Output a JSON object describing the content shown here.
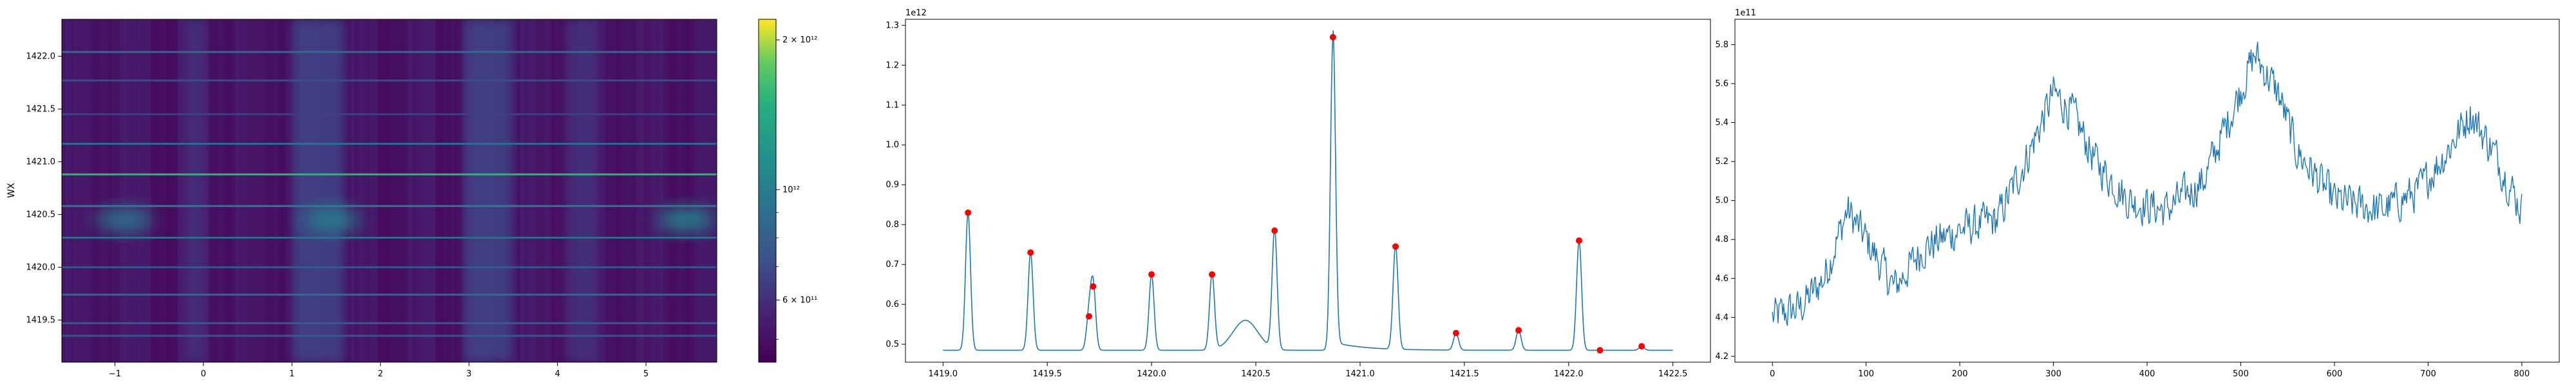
{
  "chart_data": [
    {
      "type": "heatmap",
      "xlabel": "",
      "ylabel": "WX",
      "xlim": [
        -1.6,
        5.8
      ],
      "ylim": [
        1419.1,
        1422.35
      ],
      "xticks": [
        -1,
        0,
        1,
        2,
        3,
        4,
        5
      ],
      "yticks": [
        1419.5,
        1420.0,
        1420.5,
        1421.0,
        1421.5,
        1422.0
      ],
      "ytick_labels": [
        "1419.5",
        "1420.0",
        "1420.5",
        "1421.0",
        "1421.5",
        "1422.0"
      ],
      "colormap": "viridis",
      "color_scale": "log",
      "colorbar": {
        "range": [
          450000000000,
          2200000000000
        ],
        "ticks": [
          {
            "value": 600000000000,
            "label": "6 × 10¹¹"
          },
          {
            "value": 1000000000000,
            "label": "10¹²"
          },
          {
            "value": 2000000000000,
            "label": "2 × 10¹²"
          }
        ]
      },
      "background_value": 480000000000,
      "horizontal_lines": [
        {
          "y": 1419.35,
          "value": 700000000000
        },
        {
          "y": 1419.47,
          "value": 720000000000
        },
        {
          "y": 1419.74,
          "value": 800000000000
        },
        {
          "y": 1420.0,
          "value": 700000000000
        },
        {
          "y": 1420.28,
          "value": 800000000000
        },
        {
          "y": 1420.58,
          "value": 900000000000
        },
        {
          "y": 1420.88,
          "value": 1300000000000
        },
        {
          "y": 1421.17,
          "value": 800000000000
        },
        {
          "y": 1421.45,
          "value": 600000000000
        },
        {
          "y": 1421.77,
          "value": 650000000000
        },
        {
          "y": 1422.04,
          "value": 800000000000
        }
      ],
      "vertical_bands": [
        {
          "x0": -0.2,
          "x1": 0.0,
          "value": 560000000000
        },
        {
          "x0": 1.0,
          "x1": 1.6,
          "value": 620000000000
        },
        {
          "x0": 2.95,
          "x1": 3.5,
          "value": 620000000000
        },
        {
          "x0": 4.1,
          "x1": 4.45,
          "value": 560000000000
        }
      ],
      "blobs": [
        {
          "x": -0.9,
          "y": 1420.45,
          "value": 850000000000
        },
        {
          "x": 1.45,
          "y": 1420.45,
          "value": 900000000000
        },
        {
          "x": 5.45,
          "y": 1420.45,
          "value": 950000000000
        }
      ]
    },
    {
      "type": "line",
      "xlabel": "",
      "ylabel": "",
      "y_offset_label": "1e12",
      "xlim": [
        1418.82,
        1422.68
      ],
      "ylim": [
        0.455,
        1.315
      ],
      "xticks": [
        1419.0,
        1419.5,
        1420.0,
        1420.5,
        1421.0,
        1421.5,
        1422.0,
        1422.5
      ],
      "xtick_labels": [
        "1419.0",
        "1419.5",
        "1420.0",
        "1420.5",
        "1421.0",
        "1421.5",
        "1422.0",
        "1422.5"
      ],
      "yticks": [
        0.5,
        0.6,
        0.7,
        0.8,
        0.9,
        1.0,
        1.1,
        1.2,
        1.3
      ],
      "ytick_labels": [
        "0.5",
        "0.6",
        "0.7",
        "0.8",
        "0.9",
        "1.0",
        "1.1",
        "1.2",
        "1.3"
      ],
      "x_range": [
        1419.0,
        1422.5
      ],
      "baseline": 0.485,
      "peaks": [
        {
          "x": 1419.12,
          "y": 0.83
        },
        {
          "x": 1419.42,
          "y": 0.73
        },
        {
          "x": 1419.7,
          "y": 0.57
        },
        {
          "x": 1419.72,
          "y": 0.645
        },
        {
          "x": 1420.0,
          "y": 0.675
        },
        {
          "x": 1420.29,
          "y": 0.675
        },
        {
          "x": 1420.59,
          "y": 0.785
        },
        {
          "x": 1420.87,
          "y": 1.27
        },
        {
          "x": 1421.17,
          "y": 0.745
        },
        {
          "x": 1421.46,
          "y": 0.528
        },
        {
          "x": 1421.76,
          "y": 0.535
        },
        {
          "x": 1422.05,
          "y": 0.76
        },
        {
          "x": 1422.15,
          "y": 0.485
        },
        {
          "x": 1422.35,
          "y": 0.495
        }
      ],
      "bump": {
        "x": 1420.45,
        "y": 0.56
      },
      "line_color": "#1f77b4",
      "marker_color": "#ff0000"
    },
    {
      "type": "line",
      "xlabel": "",
      "ylabel": "",
      "y_offset_label": "1e11",
      "xlim": [
        -40,
        840
      ],
      "ylim": [
        4.17,
        5.93
      ],
      "xticks": [
        0,
        100,
        200,
        300,
        400,
        500,
        600,
        700,
        800
      ],
      "xtick_labels": [
        "0",
        "100",
        "200",
        "300",
        "400",
        "500",
        "600",
        "700",
        "800"
      ],
      "yticks": [
        4.2,
        4.4,
        4.6,
        4.8,
        5.0,
        5.2,
        5.4,
        5.6,
        5.8
      ],
      "ytick_labels": [
        "4.2",
        "4.4",
        "4.6",
        "4.8",
        "5.0",
        "5.2",
        "5.4",
        "5.6",
        "5.8"
      ],
      "series": [
        {
          "line_color": "#1f77b4",
          "x_range": [
            0,
            800
          ],
          "trend": [
            {
              "x": 0,
              "y": 4.4
            },
            {
              "x": 30,
              "y": 4.45
            },
            {
              "x": 55,
              "y": 4.6
            },
            {
              "x": 80,
              "y": 4.95
            },
            {
              "x": 100,
              "y": 4.8
            },
            {
              "x": 130,
              "y": 4.55
            },
            {
              "x": 160,
              "y": 4.75
            },
            {
              "x": 200,
              "y": 4.85
            },
            {
              "x": 240,
              "y": 4.9
            },
            {
              "x": 270,
              "y": 5.2
            },
            {
              "x": 300,
              "y": 5.55
            },
            {
              "x": 320,
              "y": 5.45
            },
            {
              "x": 345,
              "y": 5.2
            },
            {
              "x": 380,
              "y": 5.0
            },
            {
              "x": 420,
              "y": 4.95
            },
            {
              "x": 460,
              "y": 5.1
            },
            {
              "x": 490,
              "y": 5.45
            },
            {
              "x": 515,
              "y": 5.75
            },
            {
              "x": 540,
              "y": 5.55
            },
            {
              "x": 560,
              "y": 5.25
            },
            {
              "x": 600,
              "y": 5.0
            },
            {
              "x": 650,
              "y": 4.95
            },
            {
              "x": 690,
              "y": 5.05
            },
            {
              "x": 720,
              "y": 5.25
            },
            {
              "x": 745,
              "y": 5.45
            },
            {
              "x": 770,
              "y": 5.25
            },
            {
              "x": 800,
              "y": 4.95
            }
          ],
          "noise_amplitude": 0.1
        }
      ]
    }
  ]
}
